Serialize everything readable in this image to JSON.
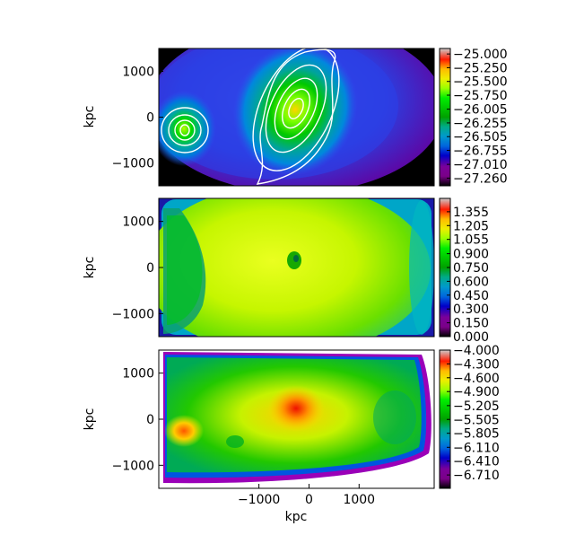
{
  "chart_data": [
    {
      "type": "heatmap",
      "panel": "top",
      "colormap": "nipy_spectral",
      "ylabel": "kpc",
      "y_ticks": [
        "1000",
        "0",
        "−1000"
      ],
      "y_tick_values": [
        1000,
        0,
        -1000
      ],
      "ylim": [
        -1500,
        1500
      ],
      "xlim": [
        -3000,
        2500
      ],
      "contours": {
        "color": "#ffffff",
        "centers": [
          [
            -2350,
            -300
          ],
          [
            0,
            150
          ]
        ]
      },
      "colorbar": {
        "vmin": -27.4,
        "vmax": -24.9,
        "ticks": [
          "−25.000",
          "−25.250",
          "−25.500",
          "−25.750",
          "−26.005",
          "−26.255",
          "−26.505",
          "−26.755",
          "−27.010",
          "−27.260"
        ],
        "tick_values": [
          -25.0,
          -25.25,
          -25.5,
          -25.75,
          -26.005,
          -26.255,
          -26.505,
          -26.755,
          -27.01,
          -27.26
        ]
      }
    },
    {
      "type": "heatmap",
      "panel": "middle",
      "colormap": "nipy_spectral",
      "ylabel": "kpc",
      "y_ticks": [
        "1000",
        "0",
        "−1000"
      ],
      "y_tick_values": [
        1000,
        0,
        -1000
      ],
      "ylim": [
        -1500,
        1500
      ],
      "xlim": [
        -3000,
        2500
      ],
      "colorbar": {
        "vmin": 0.0,
        "vmax": 1.5,
        "ticks": [
          "1.355",
          "1.205",
          "1.055",
          "0.900",
          "0.750",
          "0.600",
          "0.450",
          "0.300",
          "0.150",
          "0.000"
        ],
        "tick_values": [
          1.355,
          1.205,
          1.055,
          0.9,
          0.75,
          0.6,
          0.45,
          0.3,
          0.15,
          0.0
        ]
      }
    },
    {
      "type": "heatmap",
      "panel": "bottom",
      "colormap": "nipy_spectral",
      "ylabel": "kpc",
      "xlabel": "kpc",
      "y_ticks": [
        "1000",
        "0",
        "−1000"
      ],
      "y_tick_values": [
        1000,
        0,
        -1000
      ],
      "x_ticks": [
        "−1000",
        "0",
        "1000"
      ],
      "x_tick_values": [
        -1000,
        0,
        1000
      ],
      "ylim": [
        -1500,
        1500
      ],
      "xlim": [
        -3000,
        2500
      ],
      "colorbar": {
        "vmin": -7.0,
        "vmax": -4.0,
        "ticks": [
          "−4.000",
          "−4.300",
          "−4.600",
          "−4.900",
          "−5.205",
          "−5.505",
          "−5.805",
          "−6.110",
          "−6.410",
          "−6.710"
        ],
        "tick_values": [
          -4.0,
          -4.3,
          -4.6,
          -4.9,
          -5.205,
          -5.505,
          -5.805,
          -6.11,
          -6.41,
          -6.71
        ]
      }
    }
  ]
}
